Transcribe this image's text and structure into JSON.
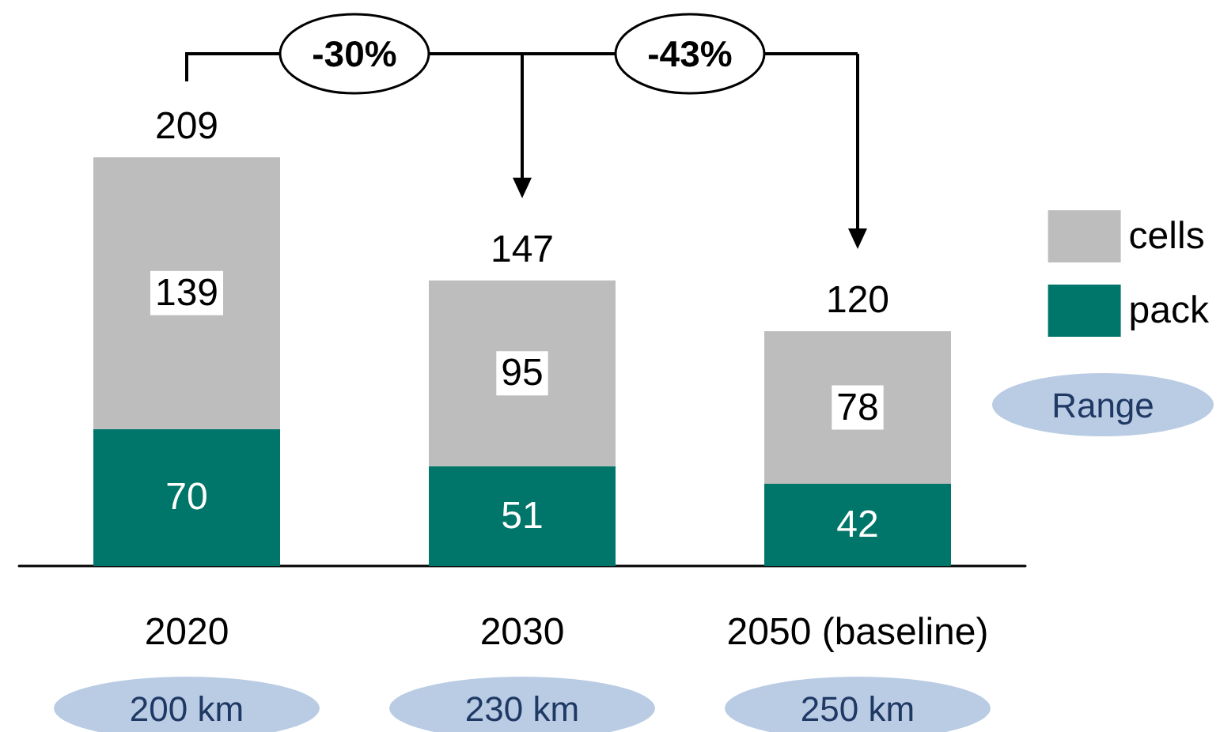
{
  "chart_data": {
    "type": "bar",
    "stacked": true,
    "categories": [
      "2020",
      "2030",
      "2050 (baseline)"
    ],
    "series": [
      {
        "name": "pack",
        "color": "#00756a",
        "values": [
          70,
          51,
          42
        ]
      },
      {
        "name": "cells",
        "color": "#bdbdbd",
        "values": [
          139,
          95,
          78
        ]
      }
    ],
    "data_labels": true,
    "totals": [
      "209",
      "147",
      "120"
    ],
    "legend": "right",
    "annotations": [
      "-30%",
      "-43%",
      "Range",
      "200 km",
      "230 km",
      "250 km"
    ]
  }
}
